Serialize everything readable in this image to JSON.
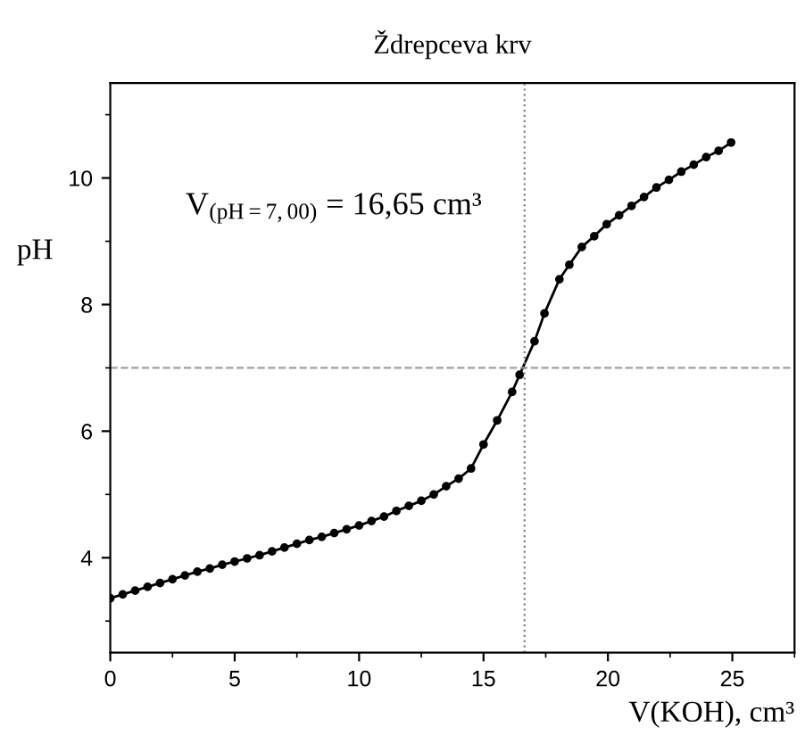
{
  "chart_data": {
    "type": "line",
    "title": "Ždrepceva krv",
    "xlabel": "V(KOH), cm³",
    "ylabel": "pH",
    "x": [
      0,
      0.5,
      1,
      1.5,
      2,
      2.5,
      3,
      3.5,
      4,
      4.5,
      5,
      5.5,
      6,
      6.5,
      7,
      7.5,
      8,
      8.5,
      9,
      9.5,
      10,
      10.5,
      11,
      11.5,
      12,
      12.5,
      13,
      13.5,
      14,
      14.5,
      15,
      15.55,
      16.15,
      16.45,
      17.05,
      17.45,
      18.05,
      18.45,
      18.95,
      19.45,
      19.95,
      20.45,
      20.95,
      21.45,
      21.95,
      22.45,
      22.95,
      23.45,
      23.95,
      24.45,
      24.95
    ],
    "series": [
      {
        "color": "#000000",
        "values": [
          3.36,
          3.42,
          3.48,
          3.54,
          3.6,
          3.66,
          3.72,
          3.78,
          3.83,
          3.89,
          3.94,
          3.99,
          4.04,
          4.1,
          4.16,
          4.22,
          4.28,
          4.33,
          4.39,
          4.45,
          4.51,
          4.58,
          4.65,
          4.74,
          4.82,
          4.9,
          5.0,
          5.13,
          5.25,
          5.41,
          5.79,
          6.17,
          6.62,
          6.89,
          7.42,
          7.86,
          8.4,
          8.63,
          8.91,
          9.08,
          9.27,
          9.41,
          9.56,
          9.7,
          9.85,
          9.97,
          10.1,
          10.21,
          10.33,
          10.43,
          10.56
        ]
      }
    ],
    "marker": "circle",
    "line_style": "solid",
    "xlim": [
      0,
      27.5
    ],
    "xticks": [
      0,
      5,
      10,
      15,
      20,
      25
    ],
    "ylim": [
      2.5,
      11.5
    ],
    "yticks": [
      4,
      6,
      8,
      10
    ],
    "ref_lines": [
      {
        "axis": "y",
        "value": 7,
        "color": "#a0a0a0",
        "line_style": "dashed"
      },
      {
        "axis": "x",
        "value": 16.65,
        "color": "#808080",
        "line_style": "dotted"
      }
    ],
    "annotations": [
      "V$_{(pH=7,00)}$ = 16,65 cm³"
    ],
    "grid": false
  }
}
